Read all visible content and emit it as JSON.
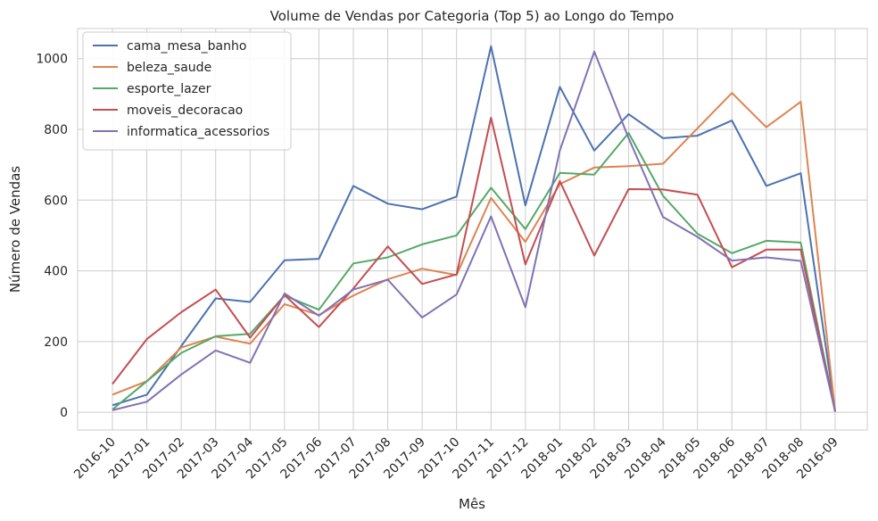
{
  "chart_data": {
    "type": "line",
    "title": "Volume de Vendas por Categoria (Top 5) ao Longo do Tempo",
    "xlabel": "Mês",
    "ylabel": "Número de Vendas",
    "categories": [
      "2016-10",
      "2017-01",
      "2017-02",
      "2017-03",
      "2017-04",
      "2017-05",
      "2017-06",
      "2017-07",
      "2017-08",
      "2017-09",
      "2017-10",
      "2017-11",
      "2017-12",
      "2018-01",
      "2018-02",
      "2018-03",
      "2018-04",
      "2018-05",
      "2018-06",
      "2018-07",
      "2018-08",
      "2016-09"
    ],
    "yticks": [
      0,
      200,
      400,
      600,
      800,
      1000
    ],
    "ylim": [
      -50,
      1085
    ],
    "grid": true,
    "legend_position": "top-left",
    "series": [
      {
        "name": "cama_mesa_banho",
        "color": "#4c72b0",
        "values": [
          20,
          50,
          187,
          322,
          312,
          430,
          434,
          640,
          590,
          574,
          610,
          1035,
          585,
          920,
          740,
          843,
          775,
          782,
          825,
          640,
          676,
          2
        ]
      },
      {
        "name": "beleza_saude",
        "color": "#dd8452",
        "values": [
          50,
          88,
          183,
          214,
          194,
          306,
          275,
          330,
          376,
          406,
          388,
          606,
          482,
          645,
          692,
          696,
          703,
          803,
          903,
          806,
          878,
          2
        ]
      },
      {
        "name": "esporte_lazer",
        "color": "#55a868",
        "values": [
          8,
          88,
          168,
          215,
          222,
          330,
          290,
          421,
          438,
          475,
          500,
          635,
          518,
          677,
          672,
          790,
          612,
          505,
          450,
          485,
          480,
          2
        ]
      },
      {
        "name": "moveis_decoracao",
        "color": "#c44e52",
        "values": [
          80,
          207,
          283,
          347,
          211,
          331,
          241,
          350,
          469,
          363,
          390,
          833,
          418,
          654,
          443,
          631,
          630,
          615,
          410,
          460,
          460,
          2
        ]
      },
      {
        "name": "informatica_acessorios",
        "color": "#8172b3",
        "values": [
          6,
          30,
          107,
          175,
          140,
          336,
          273,
          347,
          375,
          268,
          333,
          554,
          297,
          740,
          1020,
          775,
          552,
          496,
          429,
          438,
          428,
          2
        ]
      }
    ]
  }
}
